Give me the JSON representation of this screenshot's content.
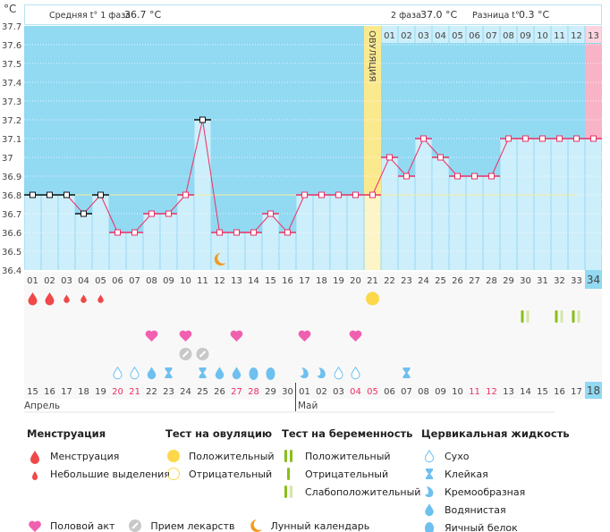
{
  "unit_label": "°C",
  "header": {
    "phase1_label": "Средняя t° 1 фаза",
    "phase1_value": "36.7 °C",
    "phase2_label": "2 фаза",
    "phase2_value": "37.0 °C",
    "diff_label": "Разница t°",
    "diff_value": "0.3 °C",
    "ovulation_label": "ОВУЛЯЦИЯ"
  },
  "colors": {
    "bg_above": "#92d9f2",
    "bg_below": "#cdeefb",
    "ovulation": "#fbe98e",
    "pregnancy_alert": "#f8b3c6",
    "line": "#ee2f62",
    "coverline": "#f7ef9a"
  },
  "chart_data": {
    "type": "line",
    "ylabel": "°C",
    "ylim": [
      36.4,
      37.7
    ],
    "yticks": [
      "37.7",
      "37.6",
      "37.5",
      "37.4",
      "37.3",
      "37.2",
      "37.1",
      "37",
      "36.9",
      "36.8",
      "36.7",
      "36.6",
      "36.5",
      "36.4"
    ],
    "cycle_days": [
      "01",
      "02",
      "03",
      "04",
      "05",
      "06",
      "07",
      "08",
      "09",
      "10",
      "11",
      "12",
      "13",
      "14",
      "15",
      "16",
      "17",
      "18",
      "19",
      "20",
      "21",
      "22",
      "23",
      "24",
      "25",
      "26",
      "27",
      "28",
      "29",
      "30",
      "31",
      "32",
      "33",
      "34"
    ],
    "temperatures": [
      36.8,
      36.8,
      36.8,
      36.7,
      36.8,
      36.6,
      36.6,
      36.7,
      36.7,
      36.8,
      37.2,
      36.6,
      36.6,
      36.6,
      36.7,
      36.6,
      36.8,
      36.8,
      36.8,
      36.8,
      36.8,
      37.0,
      36.9,
      37.1,
      37.0,
      36.9,
      36.9,
      36.9,
      37.1,
      37.1,
      37.1,
      37.1,
      37.1,
      37.1
    ],
    "black_marker_days": [
      1,
      2,
      3,
      4,
      5,
      11
    ],
    "coverline": 36.8,
    "ovulation_day": 21,
    "luteal_days": [
      "01",
      "02",
      "03",
      "04",
      "05",
      "06",
      "07",
      "08",
      "09",
      "10",
      "11",
      "12",
      "13"
    ],
    "moon_day": 12,
    "dates": [
      "15",
      "16",
      "17",
      "18",
      "19",
      "20",
      "21",
      "22",
      "23",
      "24",
      "25",
      "26",
      "27",
      "28",
      "29",
      "30",
      "01",
      "02",
      "03",
      "04",
      "05",
      "06",
      "07",
      "08",
      "09",
      "10",
      "11",
      "12",
      "13",
      "14",
      "15",
      "16",
      "17",
      "18"
    ],
    "red_dates_idx": [
      5,
      6,
      12,
      13,
      19,
      20,
      26,
      27
    ],
    "months": [
      "Апрель",
      "Май"
    ],
    "menstruation": {
      "1": "heavy",
      "2": "heavy",
      "3": "light",
      "4": "light",
      "5": "light"
    },
    "ovulation_test": {
      "21": "positive"
    },
    "pregnancy_test": {
      "30": "weak",
      "32": "weak",
      "33": "weak"
    },
    "intercourse_days": [
      8,
      10,
      13,
      17,
      20
    ],
    "medication_days": [
      10,
      11
    ],
    "cervical": {
      "6": "dry",
      "7": "dry",
      "8": "watery",
      "9": "sticky",
      "11": "sticky",
      "12": "watery",
      "13": "watery",
      "14": "eggwhite",
      "15": "eggwhite",
      "17": "creamy",
      "18": "creamy",
      "19": "dry",
      "20": "dry",
      "23": "sticky"
    }
  },
  "legend": {
    "menstruation": {
      "title": "Менструация",
      "items": [
        "Менструация",
        "Небольшие выделения"
      ]
    },
    "ovulation_test": {
      "title": "Тест на овуляцию",
      "items": [
        "Положительный",
        "Отрицательный"
      ]
    },
    "pregnancy_test": {
      "title": "Тест на беременность",
      "items": [
        "Положительный",
        "Отрицательный",
        "Слабоположительный"
      ]
    },
    "cervical": {
      "title": "Цервикальная жидкость",
      "items": [
        "Сухо",
        "Клейкая",
        "Кремообразная",
        "Водянистая",
        "Яичный белок"
      ]
    },
    "other": [
      "Половой акт",
      "Прием лекарств",
      "Лунный календарь"
    ]
  }
}
